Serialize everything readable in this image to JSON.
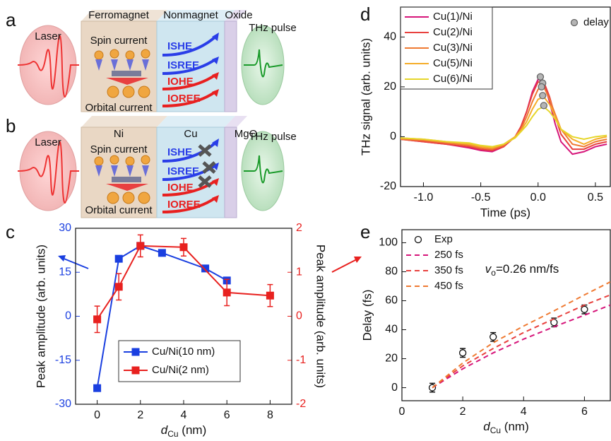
{
  "diagram_a": {
    "label": "a",
    "laser": "Laser",
    "layer1": "Ferromagnet",
    "layer2": "Nonmagnet",
    "layer3": "Oxide",
    "spin": "Spin current",
    "orbital": "Orbital current",
    "ishe": "ISHE",
    "isree": "ISREE",
    "iohe": "IOHE",
    "ioree": "IOREE",
    "thz": "THz pulse"
  },
  "diagram_b": {
    "label": "b",
    "laser": "Laser",
    "layer1": "Ni",
    "layer2": "Cu",
    "layer3": "MgO",
    "spin": "Spin current",
    "orbital": "Orbital current",
    "ishe": "ISHE",
    "isree": "ISREE",
    "iohe": "IOHE",
    "ioree": "IOREE",
    "thz": "THz pulse"
  },
  "chart_data": [
    {
      "type": "line",
      "panel": "c",
      "x_label": {
        "symbol": "d",
        "subscript": "Cu",
        "unit": "(nm)"
      },
      "y_label": "Peak amplitude (arb. units)",
      "y2_label": "Peak amplitude (arb. units)",
      "xlim": [
        -1,
        9
      ],
      "xticks": [
        0,
        2,
        4,
        6,
        8
      ],
      "ylim": [
        -30,
        30
      ],
      "yticks": [
        -30,
        -15,
        0,
        15,
        30
      ],
      "y_color": "#1a3fe0",
      "y2lim": [
        -2,
        2
      ],
      "y2ticks": [
        -2,
        -1,
        0,
        1,
        2
      ],
      "y2_color": "#e8211f",
      "legend": "lower center",
      "legend_frame": true,
      "series": [
        {
          "name": "Cu/Ni(10 nm)",
          "color": "#1a3fe0",
          "mode": "lines+markers",
          "marker": "square",
          "x": [
            0,
            1,
            2,
            3,
            5,
            6
          ],
          "values": [
            -24.5,
            19.6,
            24,
            21.6,
            16.3,
            12.2
          ]
        },
        {
          "name": "Cu/Ni(2 nm)",
          "color": "#e8211f",
          "mode": "lines+markers",
          "marker": "square",
          "axis": "y2",
          "x": [
            0,
            1,
            2,
            4,
            6,
            8
          ],
          "values": [
            -0.07,
            0.67,
            1.6,
            1.57,
            0.54,
            0.47
          ],
          "errors": [
            0.3,
            0.3,
            0.25,
            0.2,
            0.3,
            0.25
          ]
        }
      ]
    },
    {
      "type": "line",
      "panel": "d",
      "x_label": "Time (ps)",
      "y_label": "THz signal (arb. units)",
      "xlim": [
        -1.2,
        0.63
      ],
      "xticks": [
        {
          "value": -1,
          "label": "-1.0"
        },
        {
          "value": -0.5,
          "label": "-0.5"
        },
        {
          "value": 0,
          "label": "0.0"
        },
        {
          "value": 0.5,
          "label": "0.5"
        }
      ],
      "ylim": [
        -20,
        52
      ],
      "yticks": [
        -20,
        0,
        20,
        40
      ],
      "legend": "upper left",
      "legend_frame": true,
      "x": [
        -1.2,
        -1.0,
        -0.8,
        -0.6,
        -0.5,
        -0.4,
        -0.3,
        -0.2,
        -0.15,
        -0.1,
        -0.05,
        0,
        0.05,
        0.1,
        0.15,
        0.2,
        0.3,
        0.4,
        0.5,
        0.6
      ],
      "series": [
        {
          "name": "Cu(1)/Ni",
          "color": "#d6157a",
          "mode": "lines",
          "values": [
            -1,
            -2,
            -3,
            -4.5,
            -5.5,
            -6,
            -4,
            0,
            4,
            10,
            18,
            23,
            22,
            14,
            5,
            -2,
            -7,
            -6,
            -4,
            -3
          ]
        },
        {
          "name": "Cu(2)/Ni",
          "color": "#e8413e",
          "mode": "lines",
          "values": [
            -1,
            -2,
            -3,
            -4,
            -5,
            -5.5,
            -4,
            0,
            4,
            10,
            17,
            22,
            22,
            16,
            8,
            1,
            -5,
            -5,
            -3,
            -2
          ]
        },
        {
          "name": "Cu(3)/Ni",
          "color": "#ef7a32",
          "mode": "lines",
          "values": [
            -1,
            -1.5,
            -2.5,
            -3.5,
            -4.5,
            -5,
            -3.5,
            0,
            3,
            8,
            14,
            19,
            20,
            15,
            9,
            3,
            -3,
            -4,
            -2,
            -1
          ]
        },
        {
          "name": "Cu(5)/Ni",
          "color": "#f5ad2a",
          "mode": "lines",
          "values": [
            -0.5,
            -1,
            -2,
            -3,
            -4,
            -4.5,
            -3,
            0,
            2.5,
            6,
            11,
            15,
            16,
            13,
            8,
            3,
            -1,
            -3,
            -1,
            0
          ]
        },
        {
          "name": "Cu(6)/Ni",
          "color": "#e6d62a",
          "mode": "lines",
          "values": [
            -0.5,
            -1,
            -2,
            -2.5,
            -3.5,
            -4,
            -3,
            -0.5,
            2,
            4.5,
            8,
            11,
            12,
            10,
            7,
            3,
            0,
            -1,
            0,
            0.5
          ]
        },
        {
          "name": "delay",
          "color": "#b5b5b5",
          "mode": "markers",
          "marker": "circle",
          "legend": "upper right",
          "x": [
            0.02,
            0.04,
            0.03,
            0.04,
            0.05
          ],
          "values": [
            24,
            21.5,
            20,
            16.5,
            12.5
          ]
        }
      ]
    },
    {
      "type": "line",
      "panel": "e",
      "x_label": {
        "symbol": "d",
        "subscript": "Cu",
        "unit": "(nm)"
      },
      "y_label": "Delay (fs)",
      "annotation": {
        "symbol": "v",
        "subscript": "o",
        "text": "=0.26 nm/fs"
      },
      "xlim": [
        0,
        6.85
      ],
      "xticks": [
        0,
        2,
        4,
        6
      ],
      "ylim": [
        -9,
        109
      ],
      "yticks": [
        0,
        20,
        40,
        60,
        80,
        100
      ],
      "legend": "upper left",
      "legend_frame": false,
      "series": [
        {
          "name": "Exp",
          "color": "#111111",
          "mode": "markers",
          "marker": "circle",
          "marker_fill": "none",
          "x": [
            1,
            2,
            3,
            5,
            6
          ],
          "values": [
            0,
            24,
            35,
            45,
            54
          ],
          "errors": [
            3,
            3,
            3,
            3,
            3
          ]
        },
        {
          "name": "250 fs",
          "color": "#d6157a",
          "mode": "lines",
          "dash": true,
          "x": [
            1,
            2,
            3,
            4,
            5,
            6,
            6.85
          ],
          "values": [
            0,
            13,
            24,
            33.5,
            42,
            50,
            57
          ]
        },
        {
          "name": "350 fs",
          "color": "#e8413e",
          "mode": "lines",
          "dash": true,
          "x": [
            1,
            2,
            3,
            4,
            5,
            6,
            6.85
          ],
          "values": [
            0,
            15,
            27,
            38,
            47.5,
            57,
            64
          ]
        },
        {
          "name": "450 fs",
          "color": "#ef7a32",
          "mode": "lines",
          "dash": true,
          "x": [
            1,
            2,
            3,
            4,
            5,
            6,
            6.85
          ],
          "values": [
            0,
            17,
            31,
            42.5,
            53,
            64,
            73
          ]
        }
      ]
    }
  ]
}
